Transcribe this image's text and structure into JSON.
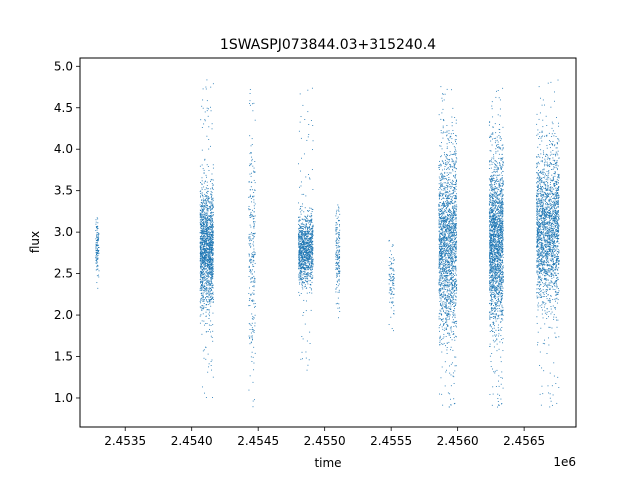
{
  "chart_data": {
    "type": "scatter",
    "title": "1SWASPJ073844.03+315240.4",
    "xlabel": "time",
    "ylabel": "flux",
    "x_offset_label": "1e6",
    "xlim": [
      2453160,
      2456890
    ],
    "ylim": [
      0.65,
      5.1
    ],
    "x_ticks": [
      2453500,
      2454000,
      2454500,
      2455000,
      2455500,
      2456000,
      2456500
    ],
    "x_tick_labels": [
      "2.4535",
      "2.4540",
      "2.4545",
      "2.4550",
      "2.4555",
      "2.4560",
      "2.4565"
    ],
    "y_ticks": [
      1.0,
      1.5,
      2.0,
      2.5,
      3.0,
      3.5,
      4.0,
      4.5,
      5.0
    ],
    "y_tick_labels": [
      "1.0",
      "1.5",
      "2.0",
      "2.5",
      "3.0",
      "3.5",
      "4.0",
      "4.5",
      "5.0"
    ],
    "grid": false,
    "color": "#1f77b4",
    "series": [
      {
        "clusters": [
          {
            "x_start": 2453275,
            "x_end": 2453300,
            "center": 2.8,
            "spread": 0.18,
            "y_min": 2.3,
            "y_max": 3.25,
            "n": 120
          },
          {
            "x_start": 2454060,
            "x_end": 2454160,
            "center": 2.8,
            "spread": 0.35,
            "y_min": 1.0,
            "y_max": 4.85,
            "n": 1600
          },
          {
            "x_start": 2454425,
            "x_end": 2454475,
            "center": 2.8,
            "spread": 0.7,
            "y_min": 0.9,
            "y_max": 4.85,
            "n": 260
          },
          {
            "x_start": 2454800,
            "x_end": 2454910,
            "center": 2.8,
            "spread": 0.2,
            "y_min": 1.3,
            "y_max": 4.75,
            "n": 1100
          },
          {
            "x_start": 2455080,
            "x_end": 2455110,
            "center": 2.75,
            "spread": 0.25,
            "y_min": 1.95,
            "y_max": 3.35,
            "n": 160
          },
          {
            "x_start": 2455480,
            "x_end": 2455520,
            "center": 2.4,
            "spread": 0.2,
            "y_min": 1.8,
            "y_max": 2.95,
            "n": 90
          },
          {
            "x_start": 2455855,
            "x_end": 2455990,
            "center": 2.85,
            "spread": 0.55,
            "y_min": 0.85,
            "y_max": 4.85,
            "n": 1900
          },
          {
            "x_start": 2456235,
            "x_end": 2456340,
            "center": 2.9,
            "spread": 0.5,
            "y_min": 0.85,
            "y_max": 4.75,
            "n": 2000
          },
          {
            "x_start": 2456590,
            "x_end": 2456760,
            "center": 3.05,
            "spread": 0.45,
            "y_min": 0.85,
            "y_max": 4.85,
            "n": 2000
          }
        ]
      }
    ]
  }
}
